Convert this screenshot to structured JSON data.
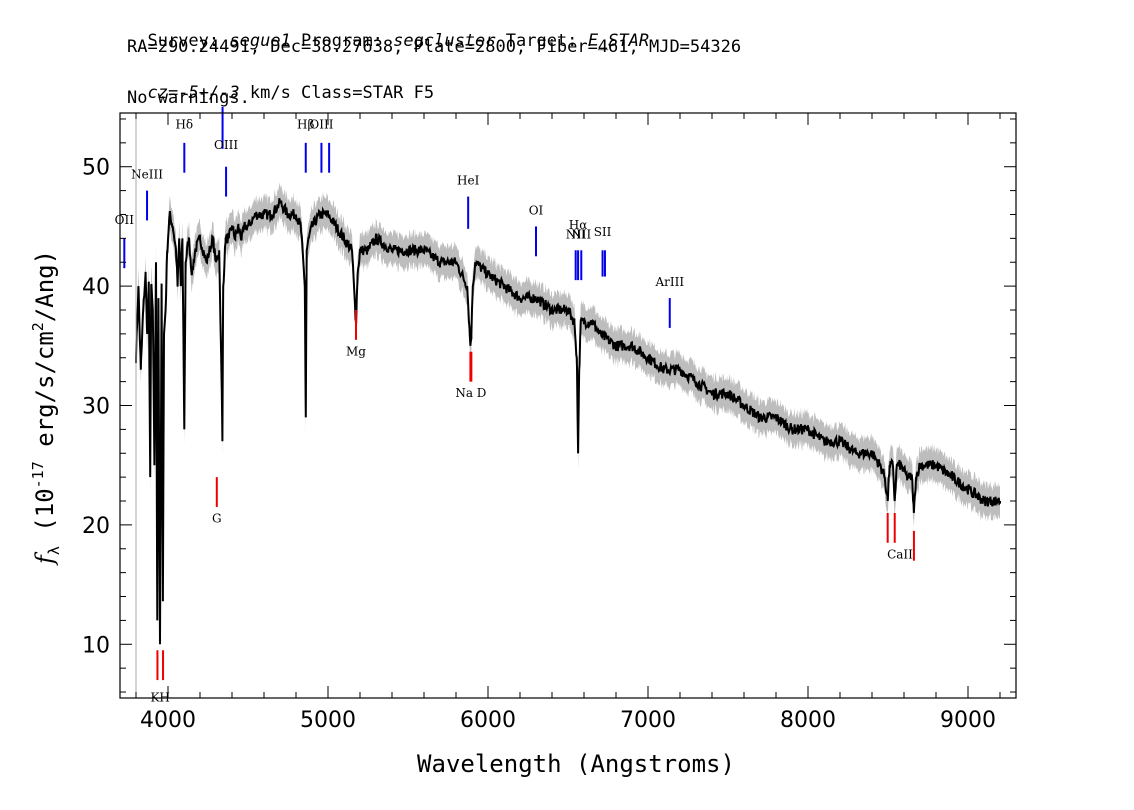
{
  "header": {
    "line1": {
      "survey_label": "Survey: ",
      "survey": "segue1",
      "program_label": " Program: ",
      "program": "segcluster",
      "target_label": " Target: ",
      "target": "F_STAR"
    },
    "line2": "RA=290.24491, Dec=38.27638, Plate=2800, Fiber=461, MJD=54326",
    "line3": {
      "cz_label": "cz",
      "cz_eq": "=",
      "cz_value": "-5+/-3",
      "cz_rest": " km/s Class=STAR F5"
    },
    "line4": "No warnings."
  },
  "chart_data": {
    "type": "line",
    "xlabel": "Wavelength (Angstroms)",
    "ylabel": "f_λ (10^-17 erg/s/cm^2/Ang)",
    "ylabel_parts": {
      "f": "f",
      "sub": "λ",
      "pre": "(10",
      "exp": "-17",
      "mid": " erg/s/cm",
      "exp2": "2",
      "post": "/Ang)"
    },
    "xlim": [
      3700,
      9300
    ],
    "ylim": [
      5.5,
      54.5
    ],
    "x_ticks": [
      4000,
      5000,
      6000,
      7000,
      8000,
      9000
    ],
    "y_ticks": [
      10,
      20,
      30,
      40,
      50
    ],
    "grid": false,
    "series": [
      {
        "role": "flux",
        "color": "#000000",
        "x": [
          3800,
          3815,
          3830,
          3845,
          3860,
          3870,
          3880,
          3889,
          3895,
          3905,
          3915,
          3925,
          3933,
          3940,
          3950,
          3960,
          3968,
          3975,
          3985,
          3995,
          4010,
          4030,
          4050,
          4060,
          4070,
          4080,
          4090,
          4102,
          4110,
          4130,
          4150,
          4170,
          4200,
          4220,
          4240,
          4260,
          4280,
          4300,
          4320,
          4335,
          4340,
          4345,
          4360,
          4380,
          4400,
          4420,
          4440,
          4460,
          4480,
          4500,
          4550,
          4600,
          4650,
          4700,
          4750,
          4800,
          4830,
          4855,
          4861,
          4867,
          4880,
          4900,
          4950,
          5000,
          5050,
          5100,
          5150,
          5170,
          5175,
          5185,
          5200,
          5250,
          5300,
          5400,
          5500,
          5600,
          5700,
          5800,
          5870,
          5890,
          5896,
          5905,
          5920,
          6000,
          6100,
          6200,
          6300,
          6400,
          6500,
          6540,
          6555,
          6563,
          6570,
          6580,
          6600,
          6650,
          6700,
          6800,
          6900,
          7000,
          7100,
          7200,
          7300,
          7400,
          7500,
          7600,
          7700,
          7800,
          7900,
          8000,
          8100,
          8200,
          8300,
          8400,
          8450,
          8480,
          8498,
          8510,
          8530,
          8542,
          8555,
          8580,
          8620,
          8650,
          8662,
          8675,
          8700,
          8800,
          8900,
          9000,
          9100,
          9200
        ],
        "y": [
          34,
          40,
          33,
          38,
          41,
          36,
          40,
          24,
          40,
          38,
          25,
          42,
          12,
          39,
          10,
          40,
          14,
          36,
          38,
          43,
          46,
          45,
          43,
          40,
          44,
          40,
          44,
          28,
          42,
          44,
          41,
          43,
          44,
          43,
          42,
          43,
          44,
          42,
          43,
          32,
          27,
          40,
          44,
          44,
          45,
          44,
          45,
          44,
          45,
          45,
          46,
          46,
          46,
          47,
          46,
          46,
          45,
          40,
          29,
          43,
          44,
          45,
          46,
          46,
          45,
          44,
          43,
          38,
          37,
          41,
          43,
          43,
          44,
          43,
          43,
          43,
          42,
          42,
          40,
          35,
          36,
          40,
          42,
          41,
          40,
          39,
          39,
          38,
          38,
          37,
          34,
          26,
          33,
          37,
          37,
          37,
          36,
          35,
          35,
          34,
          33,
          33,
          32,
          31,
          31,
          30,
          29,
          29,
          28,
          28,
          27,
          27,
          26,
          26,
          25,
          24,
          22,
          25,
          25,
          22,
          25,
          25,
          24,
          24,
          21,
          24,
          25,
          25,
          24,
          23,
          22,
          22
        ]
      },
      {
        "role": "error-band",
        "color": "#bdbdbd",
        "width": 1.2
      }
    ],
    "emission_lines": [
      {
        "label": "OII",
        "x": 3727,
        "y": [
          41.5,
          44
        ],
        "label_y": 45.2
      },
      {
        "label": "NeIII",
        "x": 3869,
        "y": [
          45.5,
          48
        ],
        "label_y": 49.0
      },
      {
        "label": "Hδ",
        "x": 4102,
        "y": [
          49.5,
          52
        ],
        "label_y": 53.2
      },
      {
        "label": "Hγ",
        "x": 4341,
        "y": [
          51.5,
          55
        ],
        "label_y": 56
      },
      {
        "label": "OIII",
        "x": 4363,
        "y": [
          47.5,
          50
        ],
        "label_y": 51.5
      },
      {
        "label": "Hβ",
        "x": 4861,
        "y": [
          49.5,
          52
        ],
        "label_y": 53.2
      },
      {
        "label": "OIII",
        "x": 4959,
        "y": [
          49.5,
          52
        ],
        "label_y": 53.2
      },
      {
        "label": "OIII",
        "x": 5007,
        "y": [
          49.5,
          52
        ],
        "label_y": 53.2
      },
      {
        "label": "HeI",
        "x": 5876,
        "y": [
          44.8,
          47.5
        ],
        "label_y": 48.5
      },
      {
        "label": "OI",
        "x": 6300,
        "y": [
          42.5,
          45
        ],
        "label_y": 46.0
      },
      {
        "label": "NII",
        "x": 6548,
        "y": [
          40.5,
          43
        ],
        "label_y": 44.0
      },
      {
        "label": "Hα",
        "x": 6563,
        "y": [
          40.5,
          43
        ],
        "label_y": 44.8
      },
      {
        "label": "NII",
        "x": 6583,
        "y": [
          40.5,
          43
        ],
        "label_y": 44.0
      },
      {
        "label": "SII",
        "x": 6716,
        "y": [
          40.8,
          43
        ],
        "label_y": 44.2
      },
      {
        "label": "SII",
        "x": 6731,
        "y": [
          40.8,
          43
        ],
        "label_y": 44.2
      },
      {
        "label": "ArIII",
        "x": 7136,
        "y": [
          36.5,
          39
        ],
        "label_y": 40.0
      }
    ],
    "absorption_lines": [
      {
        "label": "K",
        "x": 3934,
        "y": [
          7,
          9.5
        ],
        "label_y": 5.2
      },
      {
        "label": "H",
        "x": 3969,
        "y": [
          7,
          9.5
        ],
        "label_y": 5.2
      },
      {
        "label": "G",
        "x": 4305,
        "y": [
          21.5,
          24
        ],
        "label_y": 20.2
      },
      {
        "label": "Mg",
        "x": 5175,
        "y": [
          35.5,
          38
        ],
        "label_y": 34.2
      },
      {
        "label": "Na",
        "x": 5890,
        "y": [
          32,
          34.5
        ],
        "label_y": 30.7
      },
      {
        "label": "D",
        "x": 5896,
        "y": [
          32,
          34.5
        ],
        "label_y": 30.7
      },
      {
        "label": "CaII",
        "x": 8498,
        "y": [
          18.5,
          21
        ],
        "label_y": 17.2
      },
      {
        "label": "CaII",
        "x": 8542,
        "y": [
          18.5,
          21
        ],
        "label_y": 17.2
      },
      {
        "label": "CaII",
        "x": 8662,
        "y": [
          17,
          19.5
        ],
        "label_y": 17.2
      }
    ],
    "label_strings": {
      "ca": "CaII",
      "nad": "Na  D",
      "kh": "KH"
    },
    "colors": {
      "emission": "#0000ee",
      "absorption": "#ee0000",
      "frame": "#000000"
    }
  }
}
